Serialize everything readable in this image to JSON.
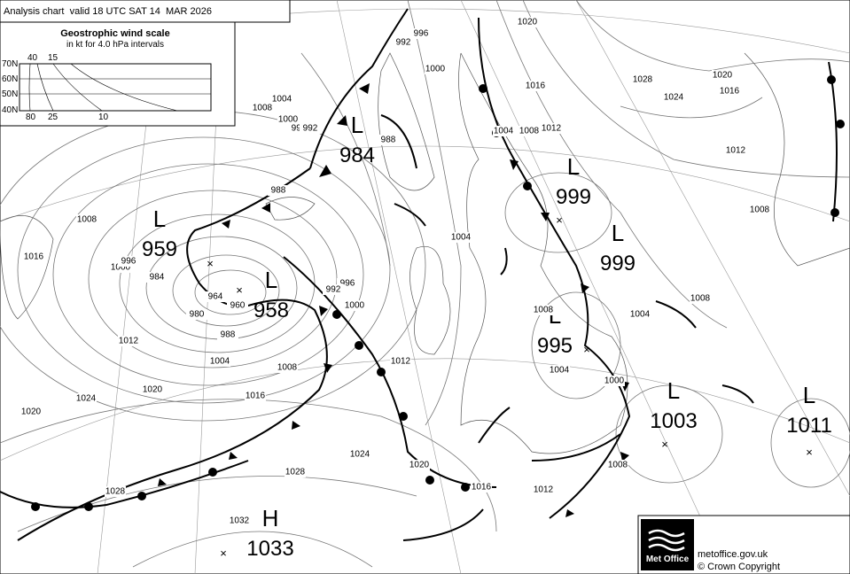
{
  "header": {
    "title": "Analysis chart  valid 18 UTC SAT 14  MAR 2026"
  },
  "wind_scale": {
    "title": "Geostrophic wind scale",
    "subtitle": "in kt for 4.0 hPa intervals",
    "latitudes": [
      "70N",
      "60N",
      "50N",
      "40N"
    ],
    "top_speeds": [
      "40",
      "15"
    ],
    "bottom_speeds": [
      "80",
      "25",
      "10"
    ]
  },
  "centers": [
    {
      "type": "L",
      "pressure": 984
    },
    {
      "type": "L",
      "pressure": 959
    },
    {
      "type": "L",
      "pressure": 958
    },
    {
      "type": "L",
      "pressure": 999
    },
    {
      "type": "L",
      "pressure": 999
    },
    {
      "type": "L",
      "pressure": 995
    },
    {
      "type": "L",
      "pressure": 1003
    },
    {
      "type": "L",
      "pressure": 1011
    },
    {
      "type": "H",
      "pressure": 1033
    }
  ],
  "isobar_labels": [
    1020,
    1016,
    1012,
    1008,
    1004,
    1000,
    996,
    992,
    1028,
    1024,
    1020,
    1016,
    1012,
    1008,
    1008,
    1004,
    1004,
    1008,
    1004,
    1000,
    1008,
    1012,
    1016,
    1020,
    1024,
    1028,
    1032,
    1028,
    1024,
    1020,
    1016,
    1012,
    1012,
    1008,
    1004,
    1000,
    996,
    992,
    988,
    984,
    980,
    964,
    960,
    1008,
    1004,
    1000,
    996,
    992,
    988,
    988,
    1000,
    996,
    1016,
    1020,
    1008
  ],
  "footer": {
    "logo": "Met Office",
    "url": "metoffice.gov.uk",
    "copyright": "© Crown Copyright"
  }
}
